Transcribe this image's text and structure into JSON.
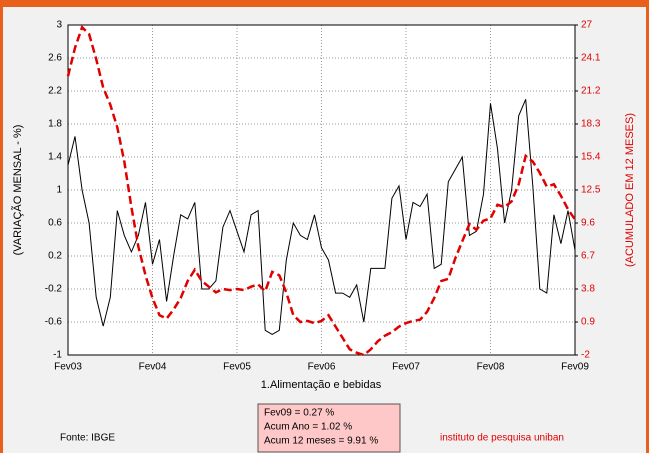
{
  "chart_data": {
    "type": "line",
    "y_label": "(VARIAÇÃO MENSAL - %)",
    "y2_label": "(ACUMULADO EM 12 MESES)",
    "x_label": "1.Alimentação e bebidas",
    "info_lines": [
      "Fev09 = 0.27 %",
      "Acum Ano = 1.02 %",
      "Acum 12 meses = 9.91 %"
    ],
    "source": "Fonte: IBGE",
    "credit": "instituto de pesquisa uniban",
    "categories": [
      "Fev03",
      null,
      null,
      null,
      null,
      null,
      null,
      null,
      null,
      null,
      null,
      null,
      "Fev04",
      null,
      null,
      null,
      null,
      null,
      null,
      null,
      null,
      null,
      null,
      null,
      "Fev05",
      null,
      null,
      null,
      null,
      null,
      null,
      null,
      null,
      null,
      null,
      null,
      "Fev06",
      null,
      null,
      null,
      null,
      null,
      null,
      null,
      null,
      null,
      null,
      null,
      "Fev07",
      null,
      null,
      null,
      null,
      null,
      null,
      null,
      null,
      null,
      null,
      null,
      "Fev08",
      null,
      null,
      null,
      null,
      null,
      null,
      null,
      null,
      null,
      null,
      null,
      "Fev09"
    ],
    "series": [
      {
        "color": "#000000",
        "axis": "y",
        "values": [
          1.3,
          1.65,
          1.0,
          0.6,
          -0.3,
          -0.65,
          -0.3,
          0.75,
          0.45,
          0.25,
          0.45,
          0.85,
          0.1,
          0.4,
          -0.35,
          0.2,
          0.7,
          0.65,
          0.85,
          -0.2,
          -0.2,
          -0.1,
          0.55,
          0.75,
          0.5,
          0.25,
          0.7,
          0.75,
          -0.7,
          -0.75,
          -0.7,
          0.15,
          0.6,
          0.45,
          0.4,
          0.7,
          0.3,
          0.15,
          -0.25,
          -0.25,
          -0.3,
          -0.15,
          -0.6,
          0.05,
          0.05,
          0.05,
          0.9,
          1.05,
          0.4,
          0.85,
          0.8,
          0.95,
          0.05,
          0.1,
          1.1,
          1.25,
          1.4,
          0.45,
          0.5,
          0.95,
          2.05,
          1.5,
          0.6,
          1.0,
          1.9,
          2.1,
          1.05,
          -0.2,
          -0.25,
          0.7,
          0.35,
          0.75,
          0.27
        ]
      },
      {
        "color": "#e00000",
        "axis": "y2",
        "dashed": true,
        "values": [
          22.5,
          25,
          26.8,
          26.2,
          24,
          21.5,
          20,
          18,
          15,
          11,
          7.5,
          5,
          3,
          1.5,
          1.2,
          2,
          3,
          4.5,
          5.5,
          4.5,
          4,
          3.5,
          3.8,
          3.7,
          3.8,
          3.7,
          4,
          4.2,
          3.6,
          5.3,
          5,
          3.5,
          1.5,
          0.9,
          1,
          0.8,
          1,
          1.5,
          0.5,
          -0.5,
          -1.5,
          -1.8,
          -2,
          -1.5,
          -0.8,
          -0.3,
          0,
          0.5,
          0.8,
          1,
          1.1,
          1.8,
          3,
          4.5,
          4.7,
          6.5,
          8,
          9.5,
          9,
          9.8,
          10,
          11.2,
          11,
          11.5,
          13,
          15.5,
          15,
          14,
          12.8,
          13,
          12,
          10.8,
          9.91
        ]
      }
    ],
    "ylim": [
      -1,
      3
    ],
    "yticks": [
      3,
      2.6,
      2.2,
      1.8,
      1.4,
      1,
      0.6,
      0.2,
      -0.2,
      -0.6,
      -1
    ],
    "y2lim": [
      -2,
      27
    ],
    "y2ticks": [
      27,
      24.1,
      21.2,
      18.3,
      15.4,
      12.5,
      9.6,
      6.7,
      3.8,
      0.9,
      -2
    ],
    "y2_color": "#e00000",
    "grid": true
  }
}
